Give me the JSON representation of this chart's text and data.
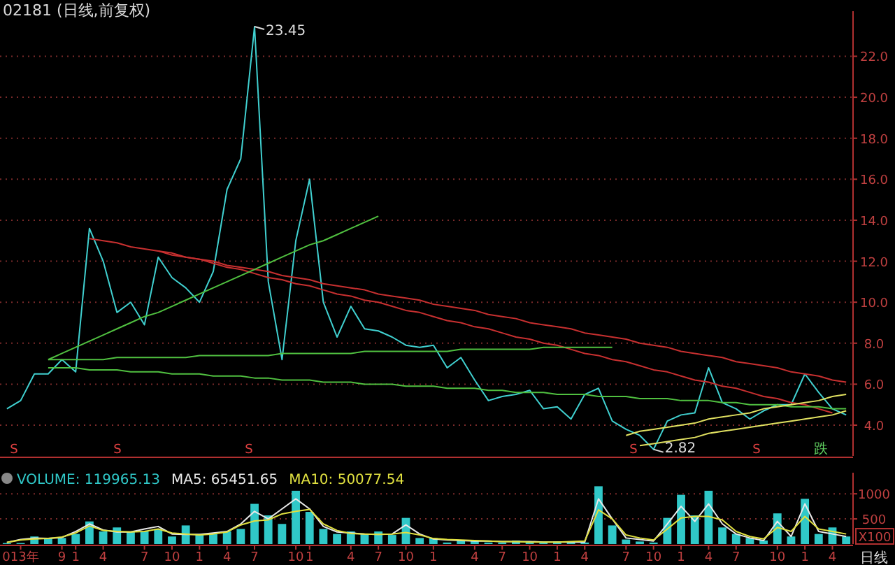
{
  "chart_data": [
    {
      "type": "line",
      "title": "02181 (日线,前复权)",
      "ylim": [
        2.5,
        24.2
      ],
      "yticks": [
        {
          "value": 4,
          "label": "4.0"
        },
        {
          "value": 6,
          "label": "6.0"
        },
        {
          "value": 8,
          "label": "8.0"
        },
        {
          "value": 10,
          "label": "10.0"
        },
        {
          "value": 12,
          "label": "12.0"
        },
        {
          "value": 14,
          "label": "14.0"
        },
        {
          "value": 16,
          "label": "16.0"
        },
        {
          "value": 18,
          "label": "18.0"
        },
        {
          "value": 20,
          "label": "20.0"
        },
        {
          "value": 22,
          "label": "22.0"
        }
      ],
      "grid": "y",
      "tick_labels": "y",
      "series": [
        {
          "color": "#40d0d0",
          "values": [
            4.8,
            5.2,
            6.5,
            6.5,
            7.2,
            6.6,
            13.6,
            12.0,
            9.5,
            10.0,
            8.9,
            12.2,
            11.2,
            10.7,
            10.0,
            11.5,
            15.5,
            17.0,
            23.45,
            11.0,
            7.2,
            13.0,
            16.0,
            10.0,
            8.3,
            9.8,
            8.7,
            8.6,
            8.3,
            7.9,
            7.8,
            7.9,
            6.8,
            7.3,
            6.2,
            5.2,
            5.4,
            5.5,
            5.7,
            4.8,
            4.9,
            4.3,
            5.5,
            5.8,
            4.2,
            3.8,
            3.5,
            2.82,
            4.2,
            4.5,
            4.6,
            6.8,
            5.1,
            4.8,
            4.3,
            4.7,
            5.0,
            5.0,
            6.5,
            5.6,
            4.8,
            4.5
          ]
        },
        {
          "color": "#c83030",
          "values": [
            null,
            null,
            null,
            null,
            null,
            null,
            13.1,
            13.0,
            12.9,
            12.7,
            12.6,
            12.5,
            12.3,
            12.2,
            12.1,
            12.0,
            11.8,
            11.7,
            11.6,
            11.5,
            11.3,
            11.2,
            11.1,
            10.9,
            10.8,
            10.7,
            10.6,
            10.4,
            10.3,
            10.2,
            10.1,
            9.9,
            9.8,
            9.7,
            9.6,
            9.4,
            9.3,
            9.2,
            9.0,
            8.9,
            8.8,
            8.7,
            8.5,
            8.4,
            8.3,
            8.2,
            8.0,
            7.9,
            7.8,
            7.6,
            7.5,
            7.4,
            7.3,
            7.1,
            7.0,
            6.9,
            6.8,
            6.6,
            6.5,
            6.4,
            6.2,
            6.1
          ]
        },
        {
          "color": "#c83030",
          "values": [
            null,
            null,
            null,
            null,
            null,
            null,
            null,
            null,
            null,
            null,
            null,
            12.5,
            12.4,
            12.2,
            12.1,
            11.9,
            11.7,
            11.6,
            11.4,
            11.2,
            11.1,
            10.9,
            10.8,
            10.6,
            10.4,
            10.3,
            10.1,
            10.0,
            9.8,
            9.6,
            9.5,
            9.3,
            9.1,
            9.0,
            8.8,
            8.7,
            8.5,
            8.3,
            8.2,
            8.0,
            7.9,
            7.7,
            7.5,
            7.4,
            7.2,
            7.1,
            6.9,
            6.7,
            6.6,
            6.4,
            6.2,
            6.1,
            5.9,
            5.8,
            5.6,
            5.4,
            5.3,
            5.1,
            5.0,
            4.8,
            4.6,
            null
          ]
        },
        {
          "color": "#50c040",
          "values": [
            null,
            null,
            null,
            7.2,
            7.5,
            7.8,
            8.1,
            8.4,
            8.7,
            9.0,
            9.3,
            9.5,
            9.8,
            10.1,
            10.4,
            10.7,
            11.0,
            11.3,
            11.6,
            11.9,
            12.2,
            12.5,
            12.8,
            13.0,
            13.3,
            13.6,
            13.9,
            14.2,
            null,
            null,
            null,
            null,
            null,
            null,
            null,
            null,
            null,
            null,
            null,
            null,
            null,
            null,
            null,
            null,
            null,
            null,
            null,
            null,
            null,
            null,
            null,
            null,
            null,
            null,
            null,
            null,
            null,
            null,
            null,
            null,
            null,
            null
          ]
        },
        {
          "color": "#50c040",
          "values": [
            null,
            null,
            null,
            7.2,
            7.2,
            7.2,
            7.2,
            7.2,
            7.3,
            7.3,
            7.3,
            7.3,
            7.3,
            7.3,
            7.4,
            7.4,
            7.4,
            7.4,
            7.4,
            7.4,
            7.5,
            7.5,
            7.5,
            7.5,
            7.5,
            7.5,
            7.6,
            7.6,
            7.6,
            7.6,
            7.6,
            7.6,
            7.6,
            7.7,
            7.7,
            7.7,
            7.7,
            7.7,
            7.7,
            7.8,
            7.8,
            7.8,
            7.8,
            7.8,
            7.8,
            null,
            null,
            null,
            null,
            null,
            null,
            null,
            null,
            null,
            null,
            null,
            null,
            null,
            null,
            null,
            null,
            null
          ]
        },
        {
          "color": "#50c040",
          "values": [
            null,
            null,
            null,
            6.8,
            6.8,
            6.8,
            6.7,
            6.7,
            6.7,
            6.6,
            6.6,
            6.6,
            6.5,
            6.5,
            6.5,
            6.4,
            6.4,
            6.4,
            6.3,
            6.3,
            6.2,
            6.2,
            6.2,
            6.1,
            6.1,
            6.1,
            6.0,
            6.0,
            6.0,
            5.9,
            5.9,
            5.9,
            5.8,
            5.8,
            5.8,
            5.7,
            5.7,
            5.6,
            5.6,
            5.6,
            5.5,
            5.5,
            5.5,
            5.4,
            5.4,
            5.4,
            5.3,
            5.3,
            5.3,
            5.2,
            5.2,
            5.2,
            5.1,
            5.1,
            5.0,
            5.0,
            5.0,
            4.9,
            4.9,
            4.9,
            4.8,
            4.8
          ]
        },
        {
          "color": "#e0e060",
          "values": [
            null,
            null,
            null,
            null,
            null,
            null,
            null,
            null,
            null,
            null,
            null,
            null,
            null,
            null,
            null,
            null,
            null,
            null,
            null,
            null,
            null,
            null,
            null,
            null,
            null,
            null,
            null,
            null,
            null,
            null,
            null,
            null,
            null,
            null,
            null,
            null,
            null,
            null,
            null,
            null,
            null,
            null,
            null,
            null,
            null,
            null,
            3.0,
            3.1,
            3.2,
            3.3,
            3.4,
            3.6,
            3.7,
            3.8,
            3.9,
            4.0,
            4.1,
            4.2,
            4.3,
            4.4,
            4.5,
            4.7
          ]
        },
        {
          "color": "#e0e060",
          "values": [
            null,
            null,
            null,
            null,
            null,
            null,
            null,
            null,
            null,
            null,
            null,
            null,
            null,
            null,
            null,
            null,
            null,
            null,
            null,
            null,
            null,
            null,
            null,
            null,
            null,
            null,
            null,
            null,
            null,
            null,
            null,
            null,
            null,
            null,
            null,
            null,
            null,
            null,
            null,
            null,
            null,
            null,
            null,
            null,
            null,
            3.5,
            3.7,
            3.8,
            3.9,
            4.0,
            4.1,
            4.3,
            4.4,
            4.5,
            4.6,
            4.8,
            4.9,
            5.0,
            5.1,
            5.2,
            5.4,
            5.5
          ]
        }
      ],
      "annotations": [
        "23.45",
        "2.82",
        "S",
        "S",
        "S",
        "S",
        "S",
        "跌"
      ]
    },
    {
      "type": "bar",
      "ylim": [
        0,
        1420
      ],
      "yticks": [
        500,
        1000
      ],
      "ylabel": "X100",
      "grid": "y",
      "legend": "top left",
      "categories": [
        null,
        "013年",
        null,
        null,
        "9",
        "1",
        null,
        "4",
        null,
        null,
        "7",
        null,
        "10",
        null,
        "1",
        null,
        "4",
        null,
        "7",
        null,
        null,
        "10",
        "1",
        null,
        null,
        "4",
        null,
        "7",
        null,
        "10",
        null,
        "1",
        null,
        null,
        "4",
        null,
        "7",
        null,
        "10",
        null,
        "1",
        null,
        "4",
        null,
        null,
        "7",
        null,
        "10",
        null,
        "1",
        null,
        "4",
        null,
        "7",
        null,
        null,
        "10",
        null,
        "1",
        null,
        "4",
        null
      ],
      "series": [
        {
          "name": "VOLUME: 119965.13",
          "color": "#30c8c8",
          "values": [
            20,
            20,
            150,
            110,
            120,
            200,
            450,
            250,
            330,
            250,
            250,
            300,
            150,
            370,
            200,
            200,
            250,
            300,
            800,
            570,
            400,
            1060,
            640,
            300,
            200,
            250,
            200,
            250,
            180,
            520,
            120,
            120,
            30,
            70,
            70,
            30,
            30,
            70,
            30,
            30,
            50,
            30,
            30,
            1150,
            370,
            90,
            50,
            30,
            520,
            980,
            570,
            1060,
            330,
            200,
            120,
            70,
            610,
            150,
            900,
            200,
            330,
            150
          ]
        },
        {
          "name": "MA5: 65451.65",
          "type": "line",
          "color": "#e8e8e8",
          "values": [
            30,
            90,
            120,
            110,
            130,
            250,
            400,
            280,
            240,
            240,
            300,
            350,
            200,
            190,
            190,
            220,
            250,
            400,
            650,
            500,
            700,
            900,
            700,
            350,
            240,
            220,
            200,
            190,
            200,
            380,
            200,
            100,
            80,
            70,
            60,
            60,
            50,
            50,
            50,
            40,
            40,
            40,
            40,
            900,
            500,
            120,
            90,
            60,
            400,
            750,
            450,
            800,
            400,
            200,
            120,
            70,
            450,
            150,
            800,
            250,
            200,
            150
          ]
        },
        {
          "name": "MA10: 50077.54",
          "type": "line",
          "color": "#e0e040",
          "values": [
            30,
            80,
            100,
            110,
            140,
            220,
            360,
            270,
            250,
            240,
            250,
            300,
            220,
            200,
            180,
            200,
            240,
            380,
            460,
            480,
            600,
            650,
            690,
            400,
            270,
            210,
            200,
            190,
            200,
            230,
            180,
            110,
            90,
            80,
            70,
            60,
            50,
            50,
            40,
            40,
            40,
            50,
            60,
            680,
            500,
            180,
            120,
            80,
            300,
            520,
            550,
            550,
            480,
            250,
            150,
            100,
            330,
            250,
            550,
            300,
            250,
            200
          ]
        }
      ],
      "annotations": [
        "日线"
      ]
    }
  ]
}
